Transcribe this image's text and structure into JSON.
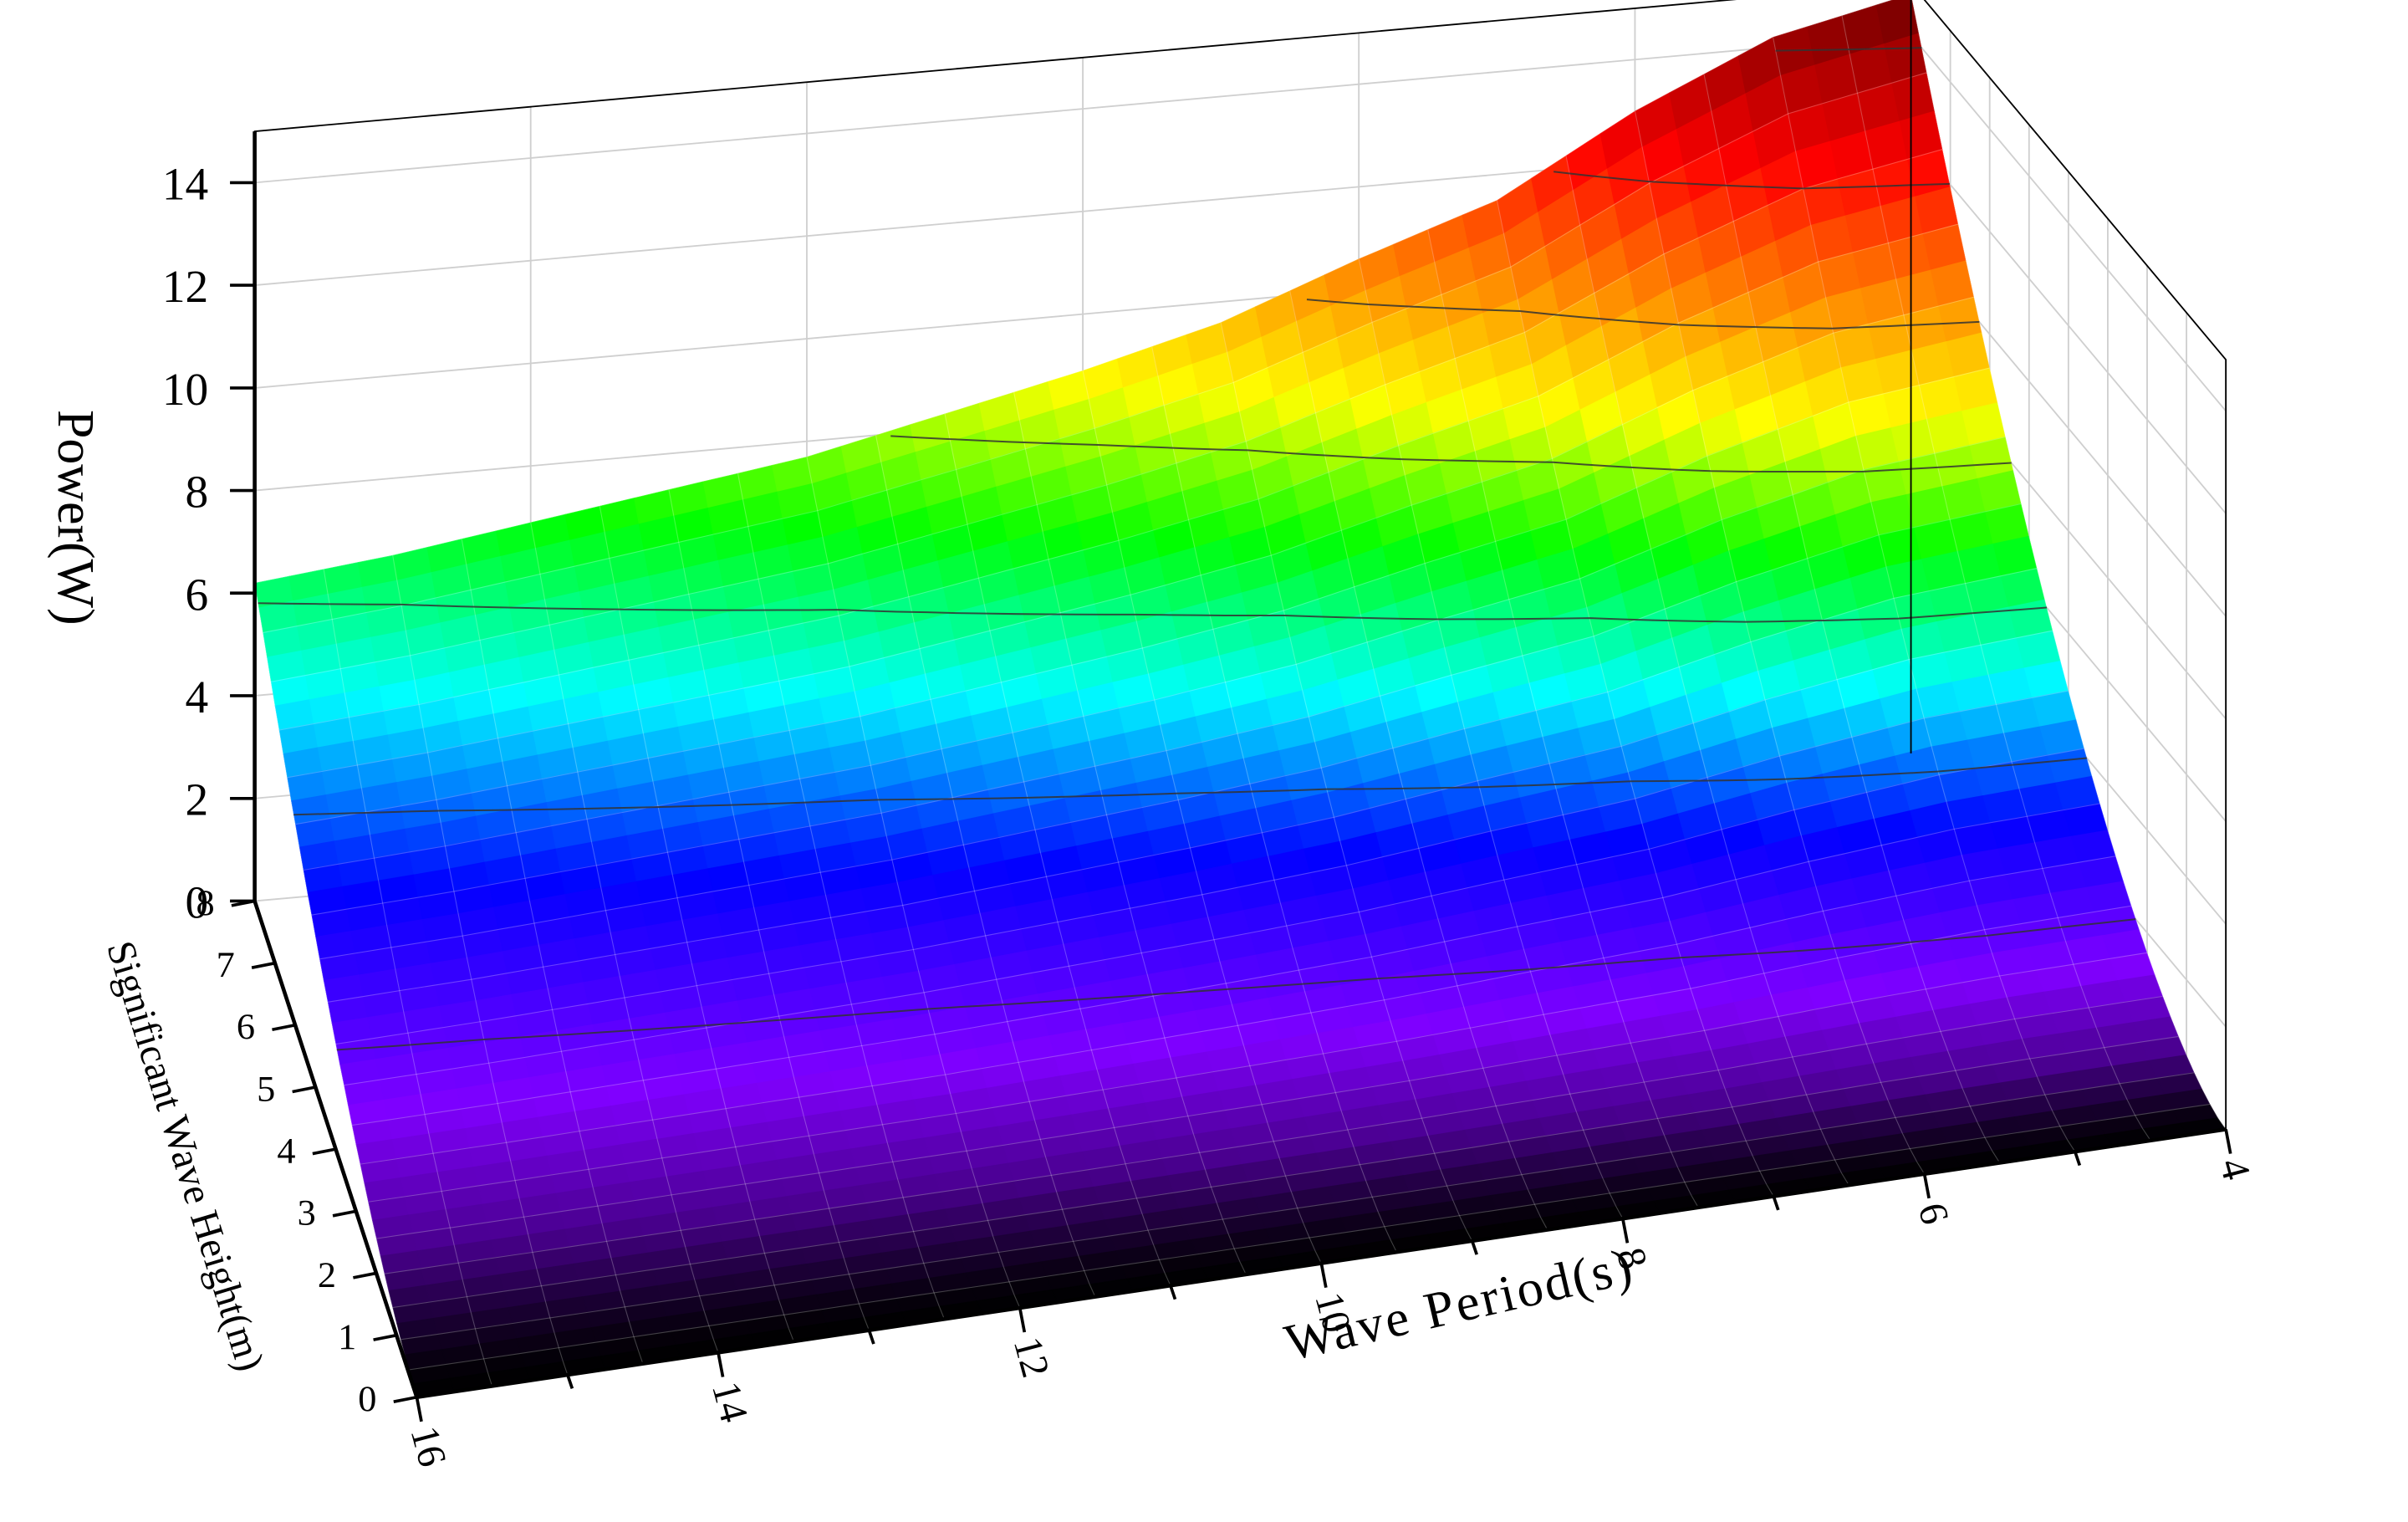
{
  "chart_data": {
    "type": "surface3d",
    "title": "",
    "zlabel": "Power(W)",
    "xlabel": "Wave Period(s)",
    "ylabel": "Significant Wave Height(m)",
    "x_ticks": [
      4,
      6,
      8,
      10,
      12,
      14,
      16
    ],
    "y_ticks": [
      0,
      1,
      2,
      3,
      4,
      5,
      6,
      7,
      8
    ],
    "z_ticks": [
      0,
      2,
      4,
      6,
      8,
      10,
      12,
      14
    ],
    "xlim": [
      4,
      16
    ],
    "ylim": [
      0,
      8
    ],
    "zlim": [
      0,
      15
    ],
    "contour_levels": [
      0,
      2,
      4,
      6,
      8,
      10,
      12,
      14
    ],
    "colormap": [
      "#000000",
      "#5a00a0",
      "#8000ff",
      "#0000ff",
      "#00ffff",
      "#00ff00",
      "#ffff00",
      "#ff8000",
      "#ff0000",
      "#600000"
    ],
    "grid": true,
    "z_at_max_height": {
      "x": [
        4,
        5,
        6,
        7,
        8,
        9,
        10,
        11,
        12,
        13,
        14,
        15,
        16
      ],
      "z": [
        14.8,
        14.2,
        13.0,
        11.5,
        10.6,
        9.6,
        8.9,
        8.3,
        7.7,
        7.3,
        6.9,
        6.5,
        6.2
      ]
    }
  }
}
